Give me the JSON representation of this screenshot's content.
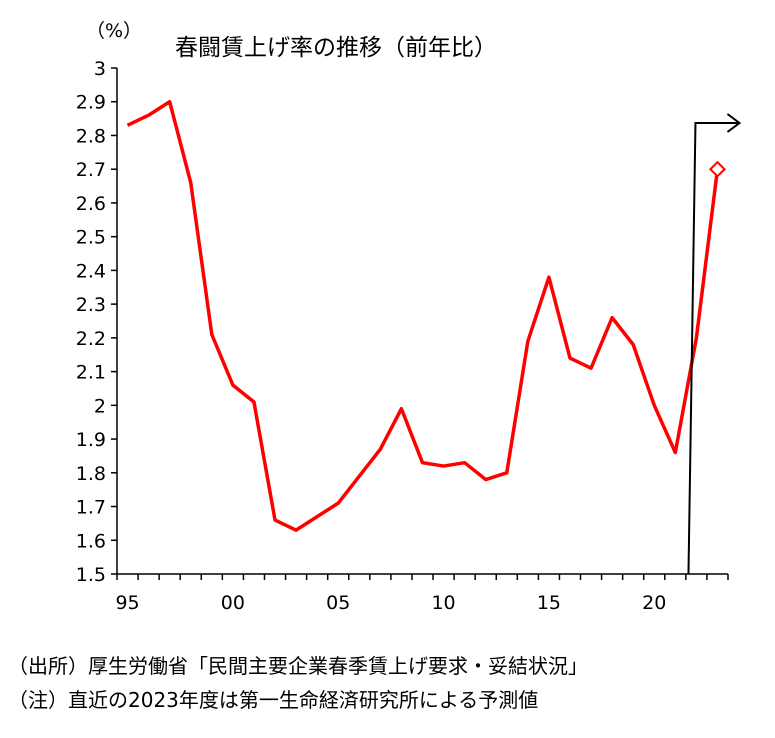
{
  "chart_data": {
    "type": "line",
    "title": "春闘賃上げ率の推移（前年比）",
    "unit_label": "（%）",
    "x": [
      1995,
      1996,
      1997,
      1998,
      1999,
      2000,
      2001,
      2002,
      2003,
      2004,
      2005,
      2006,
      2007,
      2008,
      2009,
      2010,
      2011,
      2012,
      2013,
      2014,
      2015,
      2016,
      2017,
      2018,
      2019,
      2020,
      2021,
      2022
    ],
    "values": [
      2.83,
      2.86,
      2.9,
      2.66,
      2.21,
      2.06,
      2.01,
      1.66,
      1.63,
      1.67,
      1.71,
      1.79,
      1.87,
      1.99,
      1.83,
      1.82,
      1.83,
      1.78,
      1.8,
      2.19,
      2.38,
      2.14,
      2.11,
      2.26,
      2.18,
      2.0,
      1.86,
      2.2
    ],
    "forecast": {
      "x": 2023,
      "value": 2.7
    },
    "xtick_labels": [
      "95",
      "00",
      "05",
      "10",
      "15",
      "20"
    ],
    "xtick_years": [
      1995,
      2000,
      2005,
      2010,
      2015,
      2020
    ],
    "ytick_labels": [
      "1.5",
      "1.6",
      "1.7",
      "1.8",
      "1.9",
      "2",
      "2.1",
      "2.2",
      "2.3",
      "2.4",
      "2.5",
      "2.6",
      "2.7",
      "2.8",
      "2.9",
      "3"
    ],
    "ylim": [
      1.5,
      3.0
    ],
    "xlim": [
      1994.5,
      2023.5
    ],
    "line_color": "#ff0000",
    "axis_color": "#000000"
  },
  "footer": {
    "source": "（出所）厚生労働省「民間主要企業春季賃上げ要求・妥結状況」",
    "note": "（注）直近の2023年度は第一生命経済研究所による予測値"
  }
}
